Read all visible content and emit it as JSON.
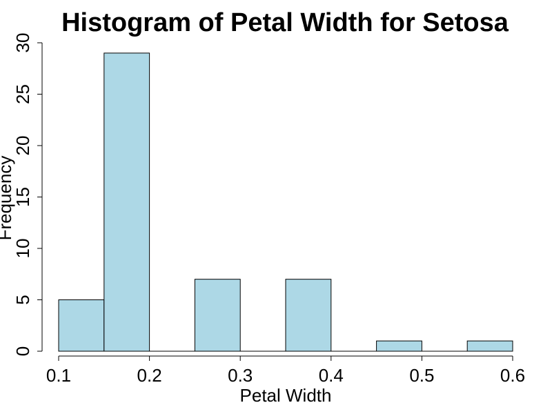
{
  "chart_data": {
    "type": "bar",
    "subtype": "histogram",
    "title": "Histogram of Petal Width for Setosa",
    "xlabel": "Petal Width",
    "ylabel": "Frequency",
    "bins": [
      {
        "x0": 0.1,
        "x1": 0.15,
        "value": 5
      },
      {
        "x0": 0.15,
        "x1": 0.2,
        "value": 29
      },
      {
        "x0": 0.2,
        "x1": 0.25,
        "value": 0
      },
      {
        "x0": 0.25,
        "x1": 0.3,
        "value": 7
      },
      {
        "x0": 0.3,
        "x1": 0.35,
        "value": 0
      },
      {
        "x0": 0.35,
        "x1": 0.4,
        "value": 7
      },
      {
        "x0": 0.4,
        "x1": 0.45,
        "value": 0
      },
      {
        "x0": 0.45,
        "x1": 0.5,
        "value": 1
      },
      {
        "x0": 0.5,
        "x1": 0.55,
        "value": 0
      },
      {
        "x0": 0.55,
        "x1": 0.6,
        "value": 1
      }
    ],
    "xlim": [
      0.1,
      0.6
    ],
    "ylim": [
      0,
      30
    ],
    "xticks": [
      "0.1",
      "0.2",
      "0.3",
      "0.4",
      "0.5",
      "0.6"
    ],
    "yticks": [
      "0",
      "5",
      "10",
      "15",
      "20",
      "25",
      "30"
    ],
    "bar_color": "#add8e6",
    "edge_color": "#000000",
    "grid": false,
    "legend": "none"
  }
}
